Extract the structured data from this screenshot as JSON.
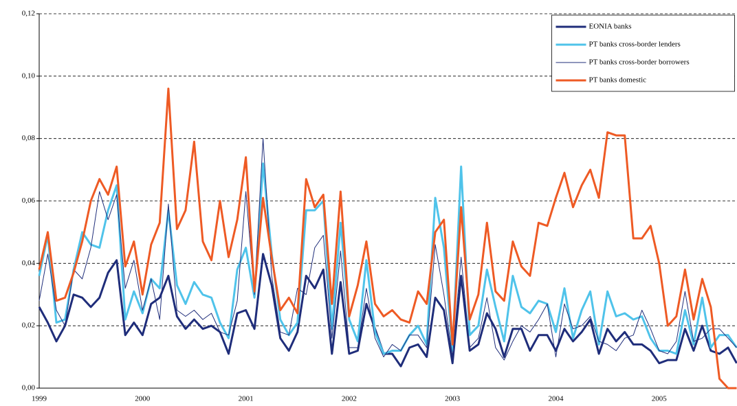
{
  "chart_data": {
    "type": "line",
    "categories": [
      "1999",
      null,
      null,
      null,
      null,
      null,
      null,
      null,
      null,
      null,
      null,
      null,
      "2000",
      null,
      null,
      null,
      null,
      null,
      null,
      null,
      null,
      null,
      null,
      null,
      "2001",
      null,
      null,
      null,
      null,
      null,
      null,
      null,
      null,
      null,
      null,
      null,
      "2002",
      null,
      null,
      null,
      null,
      null,
      null,
      null,
      null,
      null,
      null,
      null,
      "2003",
      null,
      null,
      null,
      null,
      null,
      null,
      null,
      null,
      null,
      null,
      null,
      "2004",
      null,
      null,
      null,
      null,
      null,
      null,
      null,
      null,
      null,
      null,
      null,
      "2005",
      null,
      null,
      null,
      null,
      null,
      null,
      null,
      null,
      null
    ],
    "ylim": [
      0,
      0.12
    ],
    "yticks": [
      {
        "value": 0,
        "label": "0,00"
      },
      {
        "value": 0.02,
        "label": "0,02"
      },
      {
        "value": 0.04,
        "label": "0,04"
      },
      {
        "value": 0.06,
        "label": "0,06"
      },
      {
        "value": 0.08,
        "label": "0,08"
      },
      {
        "value": 0.1,
        "label": "0,10"
      },
      {
        "value": 0.12,
        "label": "0,12"
      }
    ],
    "grid": true,
    "legend": "upper right",
    "series": [
      {
        "name": "EONIA banks",
        "color": "#1f2d7a",
        "width": 3,
        "values": [
          0.026,
          0.021,
          0.015,
          0.02,
          0.03,
          0.029,
          0.026,
          0.029,
          0.037,
          0.041,
          0.017,
          0.021,
          0.017,
          0.027,
          0.029,
          0.036,
          0.023,
          0.019,
          0.022,
          0.019,
          0.02,
          0.018,
          0.011,
          0.024,
          0.025,
          0.019,
          0.043,
          0.033,
          0.016,
          0.012,
          0.018,
          0.036,
          0.032,
          0.038,
          0.011,
          0.034,
          0.011,
          0.012,
          0.027,
          0.019,
          0.011,
          0.011,
          0.007,
          0.013,
          0.014,
          0.01,
          0.029,
          0.025,
          0.008,
          0.036,
          0.012,
          0.014,
          0.024,
          0.019,
          0.01,
          0.019,
          0.019,
          0.012,
          0.017,
          0.017,
          0.012,
          0.019,
          0.015,
          0.018,
          0.022,
          0.011,
          0.019,
          0.015,
          0.018,
          0.014,
          0.014,
          0.012,
          0.008,
          0.009,
          0.009,
          0.019,
          0.012,
          0.02,
          0.012,
          0.011,
          0.013,
          0.008
        ]
      },
      {
        "name": "PT banks cross-border lenders",
        "color": "#4fc3ea",
        "width": 3,
        "values": [
          0.036,
          0.049,
          0.021,
          0.022,
          0.038,
          0.05,
          0.046,
          0.045,
          0.057,
          0.065,
          0.022,
          0.031,
          0.024,
          0.035,
          0.032,
          0.057,
          0.033,
          0.027,
          0.034,
          0.03,
          0.029,
          0.021,
          0.016,
          0.038,
          0.045,
          0.029,
          0.072,
          0.043,
          0.022,
          0.017,
          0.021,
          0.057,
          0.057,
          0.06,
          0.019,
          0.053,
          0.022,
          0.015,
          0.041,
          0.018,
          0.011,
          0.012,
          0.012,
          0.017,
          0.02,
          0.014,
          0.061,
          0.045,
          0.012,
          0.071,
          0.017,
          0.02,
          0.038,
          0.026,
          0.015,
          0.036,
          0.026,
          0.024,
          0.028,
          0.027,
          0.018,
          0.032,
          0.016,
          0.025,
          0.031,
          0.014,
          0.031,
          0.023,
          0.024,
          0.022,
          0.023,
          0.016,
          0.012,
          0.012,
          0.011,
          0.025,
          0.014,
          0.029,
          0.013,
          0.017,
          0.017,
          0.013
        ]
      },
      {
        "name": "PT banks cross-border borrowers",
        "color": "#1f2d7a",
        "width": 1,
        "values": [
          0.028,
          0.043,
          0.025,
          0.02,
          0.038,
          0.035,
          0.045,
          0.063,
          0.054,
          0.062,
          0.032,
          0.041,
          0.025,
          0.035,
          0.022,
          0.059,
          0.025,
          0.023,
          0.025,
          0.022,
          0.024,
          0.018,
          0.017,
          0.028,
          0.063,
          0.03,
          0.08,
          0.036,
          0.018,
          0.017,
          0.032,
          0.03,
          0.045,
          0.049,
          0.016,
          0.044,
          0.013,
          0.013,
          0.032,
          0.016,
          0.01,
          0.014,
          0.012,
          0.017,
          0.017,
          0.013,
          0.046,
          0.03,
          0.01,
          0.042,
          0.013,
          0.016,
          0.029,
          0.013,
          0.009,
          0.015,
          0.02,
          0.018,
          0.022,
          0.027,
          0.01,
          0.027,
          0.019,
          0.02,
          0.023,
          0.015,
          0.014,
          0.012,
          0.016,
          0.017,
          0.025,
          0.019,
          0.012,
          0.011,
          0.015,
          0.031,
          0.015,
          0.016,
          0.019,
          0.019,
          0.016,
          0.013
        ]
      },
      {
        "name": "PT banks domestic",
        "color": "#ee5a24",
        "width": 3,
        "values": [
          0.038,
          0.05,
          0.028,
          0.029,
          0.037,
          0.047,
          0.06,
          0.067,
          0.062,
          0.071,
          0.039,
          0.047,
          0.03,
          0.046,
          0.053,
          0.096,
          0.051,
          0.057,
          0.079,
          0.047,
          0.041,
          0.06,
          0.042,
          0.054,
          0.074,
          0.031,
          0.061,
          0.042,
          0.025,
          0.029,
          0.024,
          0.067,
          0.058,
          0.062,
          0.027,
          0.063,
          0.023,
          0.033,
          0.047,
          0.027,
          0.023,
          0.025,
          0.022,
          0.021,
          0.031,
          0.027,
          0.05,
          0.054,
          0.014,
          0.058,
          0.022,
          0.03,
          0.053,
          0.031,
          0.028,
          0.047,
          0.039,
          0.036,
          0.053,
          0.052,
          0.061,
          0.069,
          0.058,
          0.065,
          0.07,
          0.061,
          0.082,
          0.081,
          0.081,
          0.048,
          0.048,
          0.052,
          0.04,
          0.02,
          0.023,
          0.038,
          0.022,
          0.035,
          0.026,
          0.003,
          0.0,
          0.0
        ]
      }
    ]
  }
}
